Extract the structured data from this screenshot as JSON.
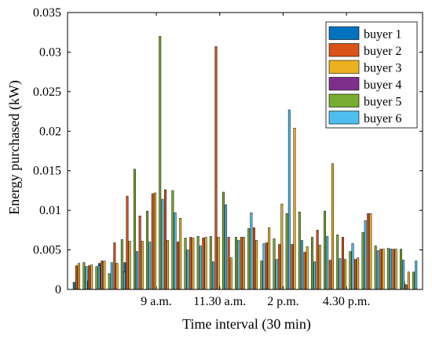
{
  "chart_data": {
    "type": "bar",
    "title": "",
    "xlabel": "Time interval (30 min)",
    "ylabel": "Energy purchased (kW)",
    "ylim": [
      0,
      0.035
    ],
    "yticks": [
      "0",
      "0.005",
      "0.01",
      "0.015",
      "0.02",
      "0.025",
      "0.03",
      "0.035"
    ],
    "xtick_labels": [
      {
        "label": "9 a.m.",
        "interval": 7
      },
      {
        "label": "11.30 a.m.",
        "interval": 12
      },
      {
        "label": "2 p.m.",
        "interval": 17
      },
      {
        "label": "4.30 p.m.",
        "interval": 22
      }
    ],
    "interval_count": 27,
    "grid": false,
    "legend_position": "top-right",
    "colors": [
      "#0072BD",
      "#D95319",
      "#EDB120",
      "#7E2F8E",
      "#77AC30",
      "#4DBEEE"
    ],
    "series": [
      {
        "name": "buyer 1",
        "values": [
          0.0009,
          0.0011,
          0.0033,
          0,
          0.0034,
          0,
          0,
          0,
          0,
          0,
          0,
          0,
          0,
          0,
          0,
          0,
          0,
          0,
          0,
          0,
          0,
          0,
          0,
          0,
          0,
          0,
          0.001
        ]
      },
      {
        "name": "buyer 2",
        "values": [
          0.003,
          0.003,
          0.0036,
          0.0059,
          0.0118,
          0.0093,
          0.0121,
          0.0126,
          0.006,
          0.0066,
          0.0065,
          0.0307,
          0.0066,
          0.0066,
          0.0078,
          0.0059,
          0.0057,
          0.0057,
          0.0047,
          0.0075,
          0.0037,
          0.0066,
          0.0038,
          0.0096,
          0.0051,
          0.0051,
          0.0006
        ]
      },
      {
        "name": "buyer 3",
        "values": [
          0.0033,
          0.0031,
          0.0036,
          0.0033,
          0.0061,
          0.0061,
          0.0122,
          0.0062,
          0.009,
          0.0065,
          0.0066,
          0.0066,
          0.004,
          0.0066,
          0.0062,
          0.0078,
          0.0108,
          0.0204,
          0.0054,
          0.0056,
          0.0159,
          0.0038,
          0.004,
          0.0096,
          0.0051,
          0.0051,
          0.0022
        ]
      },
      {
        "name": "buyer 4",
        "values": [
          0,
          0,
          0,
          0,
          0,
          0,
          0,
          0,
          0,
          0,
          0,
          0,
          0,
          0,
          0,
          0,
          0,
          0,
          0,
          0,
          0,
          0,
          0,
          0,
          0,
          0,
          0
        ]
      },
      {
        "name": "buyer 5",
        "values": [
          0.0034,
          0.0029,
          0.002,
          0.0063,
          0.0152,
          0.0099,
          0.032,
          0.0125,
          0.0065,
          0.0067,
          0.0067,
          0.0123,
          0.0066,
          0.0077,
          0.0036,
          0.0064,
          0.0096,
          0.0098,
          0.0066,
          0.0099,
          0.0069,
          0.0048,
          0.0072,
          0.0055,
          0.0052,
          0.0051,
          0.0022
        ]
      },
      {
        "name": "buyer 6",
        "values": [
          0.0029,
          0.003,
          0.0034,
          0.0022,
          0.0048,
          0.006,
          0.0114,
          0.0097,
          0.005,
          0.0055,
          0.0035,
          0.0107,
          0.0062,
          0.0097,
          0.0058,
          0.0038,
          0.0227,
          0.0062,
          0.0035,
          0.0067,
          0.0039,
          0.0058,
          0.0087,
          0.0049,
          0.0051,
          0.0037,
          0.0036
        ]
      }
    ]
  }
}
